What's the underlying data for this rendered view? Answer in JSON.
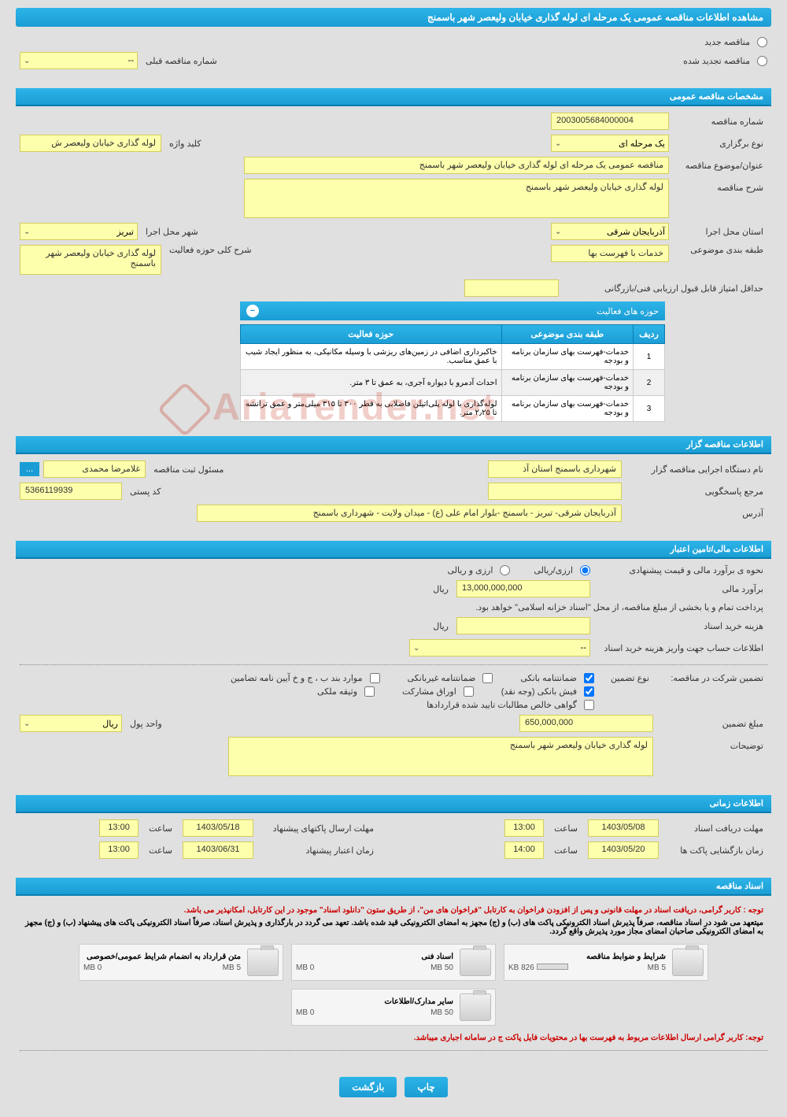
{
  "page_title": "مشاهده اطلاعات مناقصه عمومی یک مرحله ای لوله گذاری خیابان ولیعصر شهر باسمنج",
  "tender_type": {
    "new_label": "مناقصه جدید",
    "renewed_label": "مناقصه تجدید شده",
    "prev_number_label": "شماره مناقصه قبلی",
    "prev_number_value": "--"
  },
  "sections": {
    "general": "مشخصات مناقصه عمومی",
    "activity_areas": "حوزه های فعالیت",
    "organizer": "اطلاعات مناقصه گزار",
    "financial": "اطلاعات مالی/تامین اعتبار",
    "timing": "اطلاعات زمانی",
    "documents": "اسناد مناقصه"
  },
  "general": {
    "tender_number_label": "شماره مناقصه",
    "tender_number": "2003005684000004",
    "holding_type_label": "نوع برگزاری",
    "holding_type": "یک مرحله ای",
    "keyword_label": "کلید واژه",
    "keyword": "لوله گذاری خیابان ولیعصر ش",
    "subject_label": "عنوان/موضوع مناقصه",
    "subject": "مناقصه عمومی یک مرحله ای لوله گذاری خیابان ولیعصر شهر باسمنج",
    "description_label": "شرح مناقصه",
    "description": "لوله گذاری خیابان ولیعصر شهر باسمنج",
    "province_label": "استان محل اجرا",
    "province": "آذربایجان شرقی",
    "city_label": "شهر محل اجرا",
    "city": "تبریز",
    "classification_label": "طبقه بندی موضوعی",
    "classification": "خدمات با فهرست بها",
    "activity_scope_label": "شرح کلی حوزه فعالیت",
    "activity_scope": "لوله گذاری خیابان ولیعصر شهر باسمنج",
    "min_score_label": "حداقل امتیاز قابل قبول ارزیابی فنی/بازرگانی",
    "min_score": ""
  },
  "activity_table": {
    "col_row": "ردیف",
    "col_classification": "طبقه بندی موضوعی",
    "col_activity": "حوزه فعالیت",
    "rows": [
      {
        "num": "1",
        "classification": "خدمات-فهرست بهای سازمان برنامه و بودجه",
        "activity": "خاکبرداری اضافی در زمین‌های ریزشی با وسیله مکانیکی، به منظور ایجاد شیب با عمق مناسب."
      },
      {
        "num": "2",
        "classification": "خدمات-فهرست بهای سازمان برنامه و بودجه",
        "activity": "احداث آدمرو با دیواره آجری، به عمق تا ۳ متر."
      },
      {
        "num": "3",
        "classification": "خدمات-فهرست بهای سازمان برنامه و بودجه",
        "activity": "لوله‌گذاری با لوله پلی‌اتیلن فاضلابی به قطر ۳۰۰ تا ۳۱۵ میلی‌متر و عمق ترانشه تا ۲٫۲۵ متر."
      }
    ]
  },
  "organizer": {
    "agency_label": "نام دستگاه اجرایی مناقصه گزار",
    "agency": "شهرداری باسمنج استان آذ",
    "registrar_label": "مسئول ثبت مناقصه",
    "registrar": "غلامرضا محمدی",
    "reference_label": "مرجع پاسخگویی",
    "reference": "",
    "postal_code_label": "کد پستی",
    "postal_code": "5366119939",
    "address_label": "آدرس",
    "address": "آذربایجان شرقی- تبریز - باسمنج -بلوار امام علی (ع) - میدان ولایت - شهرداری باسمنج"
  },
  "financial": {
    "estimate_method_label": "نحوه ی برآورد مالی و قیمت پیشنهادی",
    "currency_rial_label": "ارزی/ریالی",
    "currency_both_label": "ارزی و ریالی",
    "estimate_label": "برآورد مالی",
    "estimate_value": "13,000,000,000",
    "currency_unit": "ریال",
    "treasury_note": "پرداخت تمام و یا بخشی از مبلغ مناقصه، از محل \"اسناد خزانه اسلامی\" خواهد بود.",
    "doc_fee_label": "هزینه خرید اسناد",
    "doc_fee_value": "",
    "account_info_label": "اطلاعات حساب جهت واریز هزینه خرید اسناد",
    "account_info_value": "--",
    "guarantee_label": "تضمین شرکت در مناقصه:",
    "guarantee_type_label": "نوع تضمین",
    "guarantee_types": {
      "bank": "ضمانتنامه بانکی",
      "nonbank": "ضمانتنامه غیربانکی",
      "items": "موارد بند ب ، ج و خ آیین نامه تضامین",
      "cash": "فیش بانکی (وجه نقد)",
      "securities": "اوراق مشارکت",
      "property": "وثیقه ملکی",
      "receivables": "گواهی خالص مطالبات تایید شده قراردادها"
    },
    "guarantee_amount_label": "مبلغ تضمین",
    "guarantee_amount": "650,000,000",
    "currency_select_label": "واحد پول",
    "currency_select_value": "ریال",
    "notes_label": "توضیحات",
    "notes": "لوله گذاری خیابان ولیعصر شهر باسمنج"
  },
  "timing": {
    "receive_deadline_label": "مهلت دریافت اسناد",
    "receive_deadline_date": "1403/05/08",
    "receive_deadline_time": "13:00",
    "proposal_deadline_label": "مهلت ارسال پاکتهای پیشنهاد",
    "proposal_deadline_date": "1403/05/18",
    "proposal_deadline_time": "13:00",
    "opening_label": "زمان بازگشایی پاکت ها",
    "opening_date": "1403/05/20",
    "opening_time": "14:00",
    "validity_label": "زمان اعتبار پیشنهاد",
    "validity_date": "1403/06/31",
    "validity_time": "13:00",
    "time_label": "ساعت"
  },
  "documents": {
    "warning1": "توجه : کاربر گرامی، دریافت اسناد در مهلت قانونی و پس از افزودن فراخوان به کارتابل \"فراخوان های من\"، از طریق ستون \"دانلود اسناد\" موجود در این کارتابل، امکانپذیر می باشد.",
    "warning2": "میتعهد می شود در اسناد مناقصه، صرفاً پذیرش اسناد الکترونیکی پاکت های (ب) و (ج) مجهز به امضای الکترونیکی قید شده باشد. تعهد می گردد در بارگذاری و پذیرش اسناد، صرفاً اسناد الکترونیکی پاکت های پیشنهاد (ب) و (ج) مجهز به امضای الکترونیکی صاحبان امضای مجاز مورد پذیرش واقع گردد.",
    "warning3": "توجه: کاربر گرامی ارسال اطلاعات مربوط به فهرست بها در محتویات فایل پاکت ج در سامانه اجباری میباشد.",
    "docs": [
      {
        "title": "شرایط و ضوابط مناقصه",
        "used": "826 KB",
        "total": "5 MB",
        "has_progress": true
      },
      {
        "title": "اسناد فنی",
        "used": "0 MB",
        "total": "50 MB",
        "has_progress": false
      },
      {
        "title": "متن قرارداد به انضمام شرایط عمومی/خصوصی",
        "used": "0 MB",
        "total": "5 MB",
        "has_progress": false
      },
      {
        "title": "سایر مدارک/اطلاعات",
        "used": "0 MB",
        "total": "50 MB",
        "has_progress": false
      }
    ]
  },
  "buttons": {
    "print": "چاپ",
    "back": "بازگشت"
  },
  "watermark": "AriaTender.net"
}
